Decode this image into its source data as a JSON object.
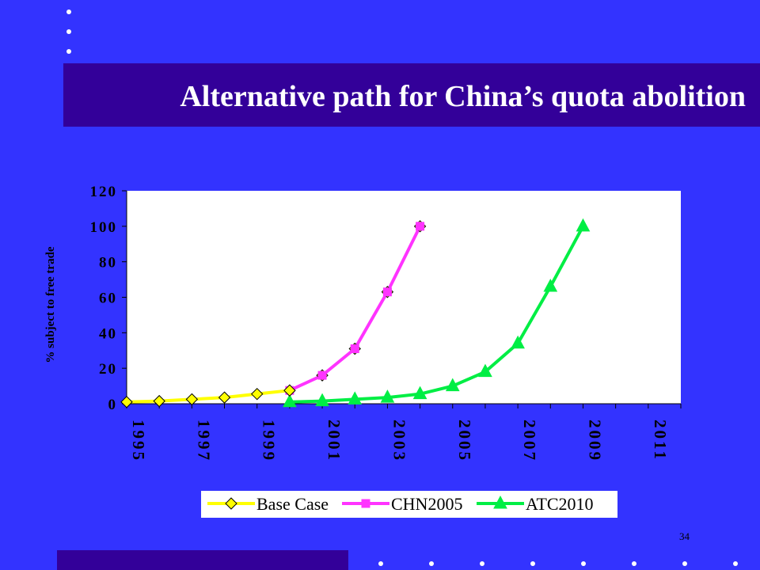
{
  "slide": {
    "title": "Alternative path for China’s quota abolition",
    "page_number": "34"
  },
  "colors": {
    "background": "#3333ff",
    "band": "#330099",
    "base_case": "#ffff00",
    "chn2005": "#ff33ff",
    "atc2010": "#00ee44"
  },
  "chart_data": {
    "type": "line",
    "title": "",
    "xlabel": "",
    "ylabel": "% subject to free trade",
    "ylim": [
      0,
      120
    ],
    "yticks": [
      0,
      20,
      40,
      60,
      80,
      100,
      120
    ],
    "xlim": [
      1995,
      2012
    ],
    "xticks": [
      1995,
      1997,
      1999,
      2001,
      2003,
      2005,
      2007,
      2009,
      2011
    ],
    "grid": false,
    "legend_position": "bottom",
    "series": [
      {
        "name": "Base Case",
        "marker": "diamond",
        "color": "#ffff00",
        "x": [
          1995,
          1996,
          1997,
          1998,
          1999,
          2000
        ],
        "values": [
          1,
          1.5,
          2.5,
          3.5,
          5.5,
          7.5
        ]
      },
      {
        "name": "CHN2005",
        "marker": "square",
        "color": "#ff33ff",
        "x": [
          2000,
          2001,
          2002,
          2003,
          2004
        ],
        "values": [
          7.5,
          16,
          31,
          63,
          100
        ]
      },
      {
        "name": "ATC2010",
        "marker": "triangle",
        "color": "#00ee44",
        "x": [
          2000,
          2001,
          2002,
          2003,
          2004,
          2005,
          2006,
          2007,
          2008,
          2009
        ],
        "values": [
          1,
          1.5,
          2.5,
          3.5,
          5.5,
          10,
          18,
          34,
          66,
          100
        ]
      }
    ]
  }
}
